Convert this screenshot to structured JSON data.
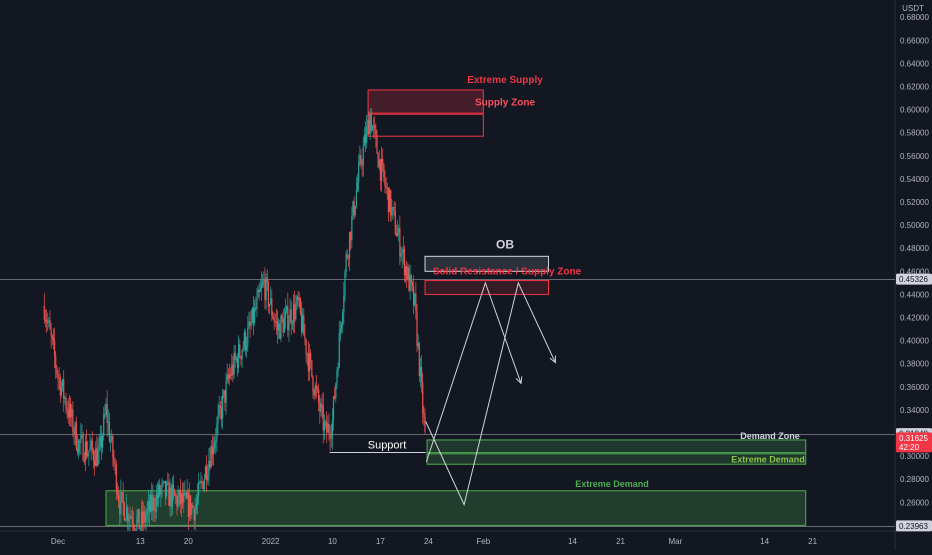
{
  "chart_data": {
    "type": "candlestick",
    "currency": "USDT",
    "ylim": [
      0.236,
      0.686
    ],
    "y_ticks": [
      "0.68000",
      "0.66000",
      "0.64000",
      "0.62000",
      "0.60000",
      "0.58000",
      "0.56000",
      "0.54000",
      "0.52000",
      "0.50000",
      "0.48000",
      "0.46000",
      "0.44000",
      "0.42000",
      "0.40000",
      "0.38000",
      "0.36000",
      "0.34000",
      "0.32000",
      "0.30000",
      "0.28000",
      "0.26000"
    ],
    "x_tick_labels": [
      {
        "label": "Dec",
        "day": 1
      },
      {
        "label": "13",
        "day": 13
      },
      {
        "label": "20",
        "day": 20
      },
      {
        "label": "2022",
        "day": 32
      },
      {
        "label": "10",
        "day": 41
      },
      {
        "label": "17",
        "day": 48
      },
      {
        "label": "24",
        "day": 55
      },
      {
        "label": "Feb",
        "day": 63
      },
      {
        "label": "14",
        "day": 76
      },
      {
        "label": "21",
        "day": 83
      },
      {
        "label": "Mar",
        "day": 91
      },
      {
        "label": "14",
        "day": 104
      },
      {
        "label": "21",
        "day": 111
      }
    ],
    "price_anchors": [
      {
        "day": -1,
        "close": 0.43
      },
      {
        "day": 1,
        "close": 0.37
      },
      {
        "day": 4,
        "close": 0.31
      },
      {
        "day": 7,
        "close": 0.3
      },
      {
        "day": 8,
        "close": 0.34
      },
      {
        "day": 10,
        "close": 0.26
      },
      {
        "day": 13,
        "close": 0.24
      },
      {
        "day": 16,
        "close": 0.27
      },
      {
        "day": 19,
        "close": 0.26
      },
      {
        "day": 21,
        "close": 0.255
      },
      {
        "day": 24,
        "close": 0.32
      },
      {
        "day": 26,
        "close": 0.37
      },
      {
        "day": 29,
        "close": 0.41
      },
      {
        "day": 31,
        "close": 0.45
      },
      {
        "day": 33,
        "close": 0.41
      },
      {
        "day": 36,
        "close": 0.43
      },
      {
        "day": 38,
        "close": 0.37
      },
      {
        "day": 40,
        "close": 0.32
      },
      {
        "day": 41,
        "close": 0.33
      },
      {
        "day": 43,
        "close": 0.47
      },
      {
        "day": 45,
        "close": 0.55
      },
      {
        "day": 46.5,
        "close": 0.595
      },
      {
        "day": 48,
        "close": 0.55
      },
      {
        "day": 51,
        "close": 0.48
      },
      {
        "day": 53,
        "close": 0.43
      },
      {
        "day": 54.5,
        "close": 0.316
      }
    ],
    "current_price": 0.453,
    "price_labels": [
      {
        "value": 0.45326,
        "text": "0.45326",
        "style": "plain"
      },
      {
        "value": 0.31948,
        "text": "0.31948",
        "style": "plain"
      },
      {
        "value": 0.31625,
        "text": "0.31625",
        "sub": "42:20",
        "style": "red"
      },
      {
        "value": 0.23963,
        "text": "0.23963",
        "style": "plain"
      }
    ],
    "horizontal_lines": [
      {
        "value": 0.453,
        "color": "#9598a1"
      },
      {
        "value": 0.3195,
        "color": "#9598a1"
      },
      {
        "value": 0.2395,
        "color": "#9598a1"
      }
    ],
    "zones": [
      {
        "label": "Extreme Supply",
        "label_pos": "above",
        "d0": 46.2,
        "d1": 63,
        "y_top": 0.617,
        "y_bot": 0.597,
        "kind": "supply"
      },
      {
        "label": "Supply Zone",
        "label_pos": "inside",
        "d0": 46.2,
        "d1": 63,
        "y_top": 0.617,
        "y_bot": 0.597,
        "kind": "supply_label_only"
      },
      {
        "label": "",
        "label_pos": "none",
        "d0": 46.2,
        "d1": 63,
        "y_top": 0.596,
        "y_bot": 0.577,
        "kind": "supply_outline"
      },
      {
        "label": "OB",
        "label_pos": "above",
        "d0": 54.5,
        "d1": 72.5,
        "y_top": 0.473,
        "y_bot": 0.46,
        "kind": "ob"
      },
      {
        "label": "Solid Resistance / Supply Zone",
        "label_pos": "above",
        "d0": 54.5,
        "d1": 72.5,
        "y_top": 0.452,
        "y_bot": 0.44,
        "kind": "resistance"
      },
      {
        "label": "Demand Zone",
        "label_pos": "above-right",
        "d0": 54.8,
        "d1": 110,
        "y_top": 0.314,
        "y_bot": 0.303,
        "kind": "demand"
      },
      {
        "label": "Extreme Demand",
        "label_pos": "inside-right",
        "d0": 54.8,
        "d1": 110,
        "y_top": 0.302,
        "y_bot": 0.293,
        "kind": "demand"
      },
      {
        "label": "Extreme Demand",
        "label_pos": "above-center",
        "d0": 8,
        "d1": 110,
        "y_top": 0.27,
        "y_bot": 0.24,
        "kind": "demand_big"
      }
    ],
    "support": {
      "label": "Support",
      "d0": 40.6,
      "d1": 54.6,
      "value": 0.304
    },
    "projection_paths": [
      [
        {
          "day": 54.7,
          "v": 0.295
        },
        {
          "day": 63.3,
          "v": 0.45
        },
        {
          "day": 68.5,
          "v": 0.363
        }
      ],
      [
        {
          "day": 54.6,
          "v": 0.33
        },
        {
          "day": 60.2,
          "v": 0.258
        },
        {
          "day": 68.1,
          "v": 0.45
        },
        {
          "day": 73.5,
          "v": 0.381
        }
      ]
    ]
  }
}
